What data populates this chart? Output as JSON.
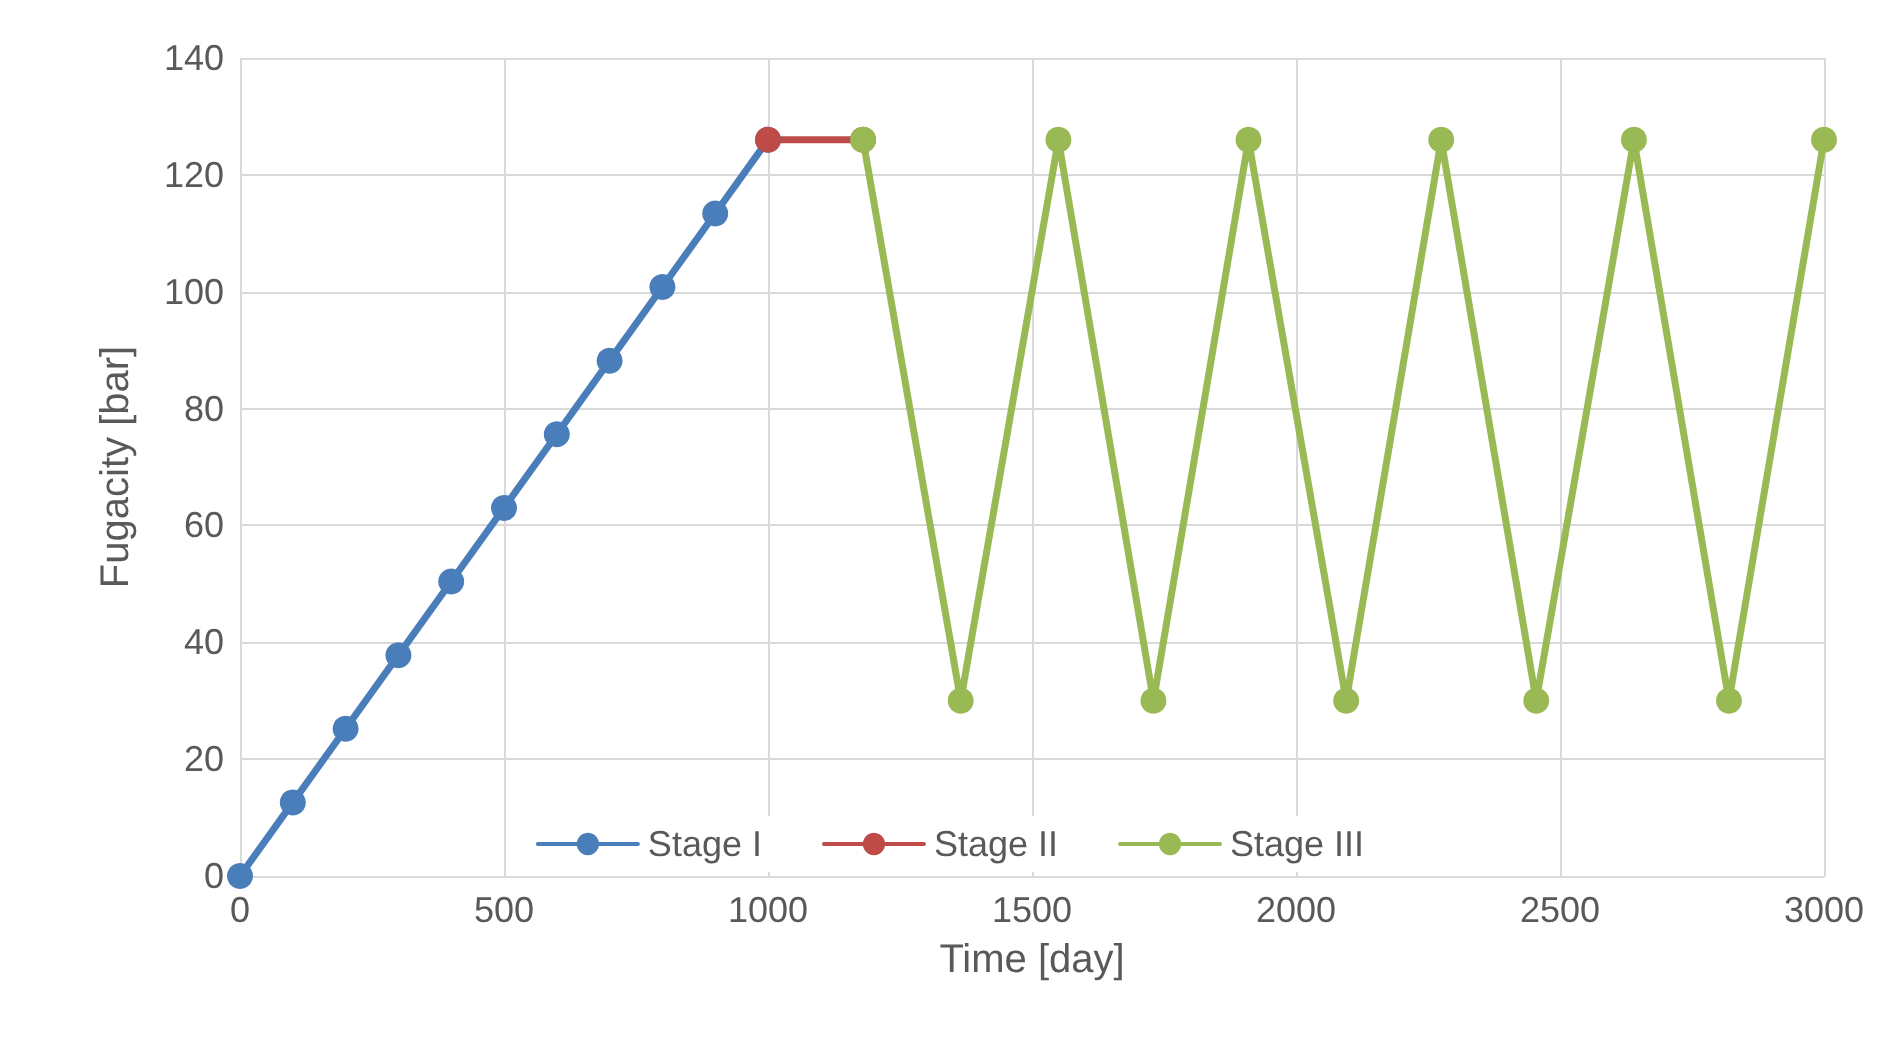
{
  "chart_data": {
    "type": "line",
    "xlabel": "Time [day]",
    "ylabel": "Fugacity [bar]",
    "xlim": [
      0,
      3000
    ],
    "xticks": [
      0,
      500,
      1000,
      1500,
      2000,
      2500,
      3000
    ],
    "ylim": [
      0,
      140
    ],
    "yticks": [
      0,
      20,
      40,
      60,
      80,
      100,
      120,
      140
    ],
    "grid": true,
    "legend": "bottom",
    "marker": "circle",
    "line_style": "solid",
    "series": [
      {
        "name": "Stage I",
        "color": "#4a7ebb",
        "x": [
          0,
          100,
          200,
          300,
          400,
          500,
          600,
          700,
          800,
          900,
          1000
        ],
        "values": [
          0,
          12.6,
          25.2,
          37.8,
          50.4,
          63,
          75.6,
          88.2,
          100.8,
          113.4,
          126
        ]
      },
      {
        "name": "Stage II",
        "color": "#be4b48",
        "x": [
          1000,
          1180
        ],
        "values": [
          126,
          126
        ]
      },
      {
        "name": "Stage III",
        "color": "#98b954",
        "x": [
          1180,
          1365,
          1550,
          1730,
          1910,
          2095,
          2275,
          2455,
          2640,
          2820,
          3000
        ],
        "values": [
          126,
          30,
          126,
          30,
          126,
          30,
          126,
          30,
          126,
          30,
          126
        ]
      }
    ]
  }
}
